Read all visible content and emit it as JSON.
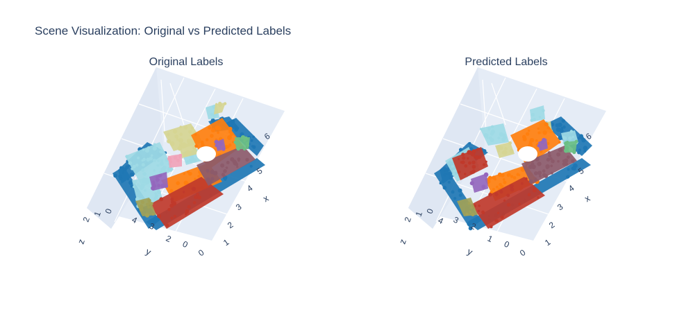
{
  "title": "Scene Visualization: Original vs Predicted Labels",
  "colors": {
    "blue": "#1f77b4",
    "orange": "#ff7f0e",
    "red": "#c0392b",
    "light_blue": "#9edae5",
    "tan": "#d6d593",
    "olive": "#a2a257",
    "purple": "#9467bd",
    "mauve": "#8c5a6a",
    "green": "#6cbf84",
    "pink": "#f0a3b8",
    "scene_plane": "#e5ecf6",
    "grid": "#ffffff"
  },
  "chart_data": [
    {
      "type": "scatter3d",
      "title": "Original Labels",
      "axes": {
        "x": {
          "label": "x",
          "ticks": [
            "0",
            "1",
            "2",
            "3",
            "4",
            "5",
            "6"
          ]
        },
        "y": {
          "label": "y",
          "ticks": [
            "0",
            "2",
            "3",
            "4"
          ]
        },
        "z": {
          "label": "z",
          "ticks": [
            "0",
            "1",
            "2"
          ]
        }
      },
      "series": [
        {
          "color": "blue"
        },
        {
          "color": "orange"
        },
        {
          "color": "red"
        },
        {
          "color": "light_blue"
        },
        {
          "color": "tan"
        },
        {
          "color": "olive"
        },
        {
          "color": "purple"
        },
        {
          "color": "mauve"
        },
        {
          "color": "green"
        },
        {
          "color": "pink"
        }
      ]
    },
    {
      "type": "scatter3d",
      "title": "Predicted Labels",
      "axes": {
        "x": {
          "label": "x",
          "ticks": [
            "0",
            "1",
            "2",
            "3",
            "4",
            "5",
            "6"
          ]
        },
        "y": {
          "label": "y",
          "ticks": [
            "0",
            "1",
            "2",
            "3",
            "4"
          ]
        },
        "z": {
          "label": "z",
          "ticks": [
            "0",
            "1",
            "2"
          ]
        }
      },
      "series": [
        {
          "color": "blue"
        },
        {
          "color": "orange"
        },
        {
          "color": "red"
        },
        {
          "color": "light_blue"
        },
        {
          "color": "tan"
        },
        {
          "color": "olive"
        },
        {
          "color": "purple"
        },
        {
          "color": "mauve"
        },
        {
          "color": "green"
        }
      ]
    }
  ]
}
